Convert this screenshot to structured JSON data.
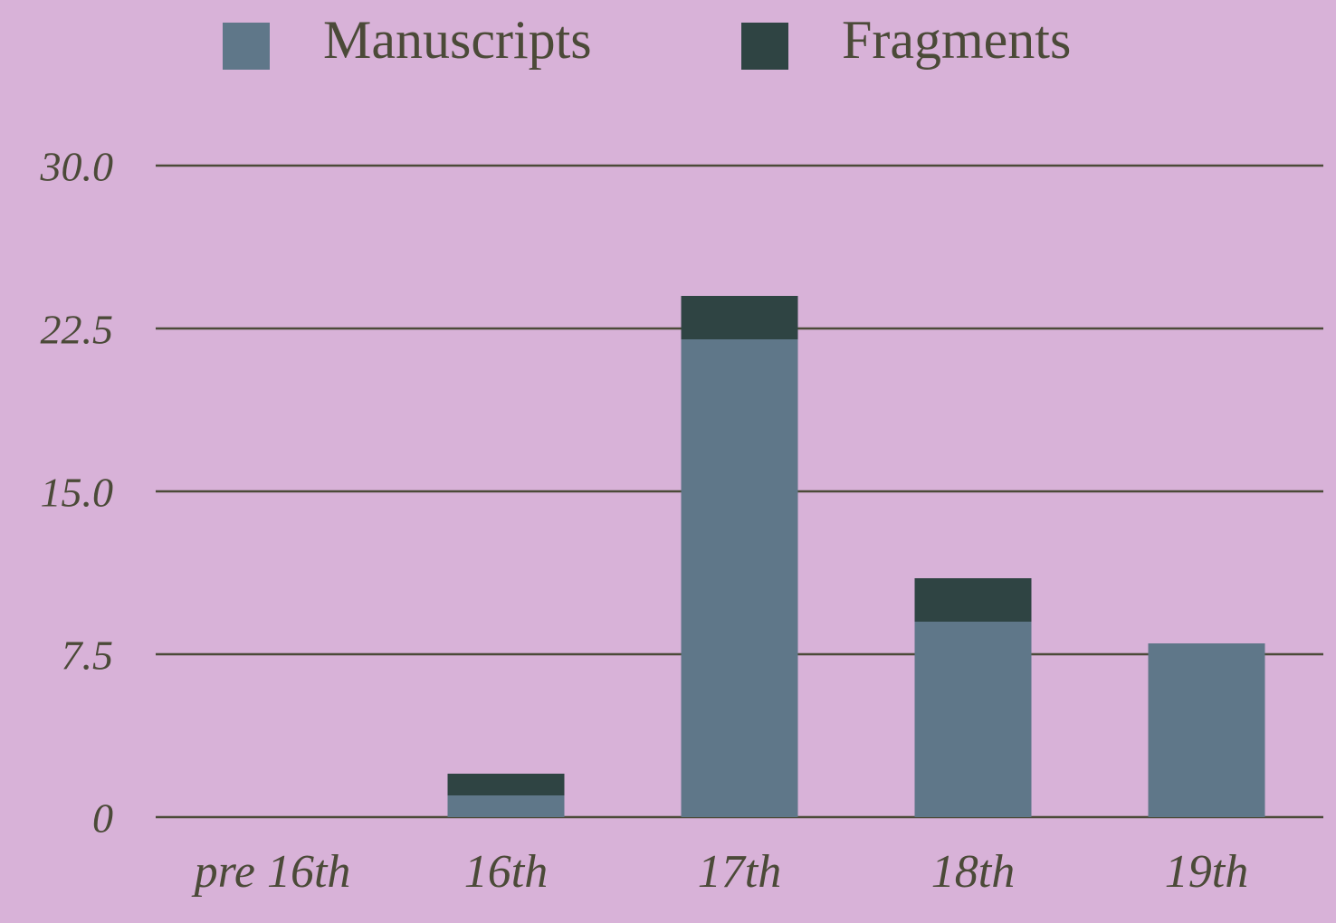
{
  "chart_data": {
    "type": "stacked_bar",
    "categories": [
      "pre 16th",
      "16th",
      "17th",
      "18th",
      "19th"
    ],
    "series": [
      {
        "name": "Manuscripts",
        "color": "#5f7789",
        "values": [
          0,
          1,
          22,
          9,
          8
        ]
      },
      {
        "name": "Fragments",
        "color": "#2f4443",
        "values": [
          0,
          1,
          2,
          2,
          0
        ]
      }
    ],
    "ylim": [
      0,
      30
    ],
    "yticks": [
      0,
      7.5,
      {
        "value": 15,
        "label": "15.0"
      },
      22.5,
      {
        "value": 30,
        "label": "30.0"
      }
    ],
    "grid": true,
    "legend": "top"
  }
}
